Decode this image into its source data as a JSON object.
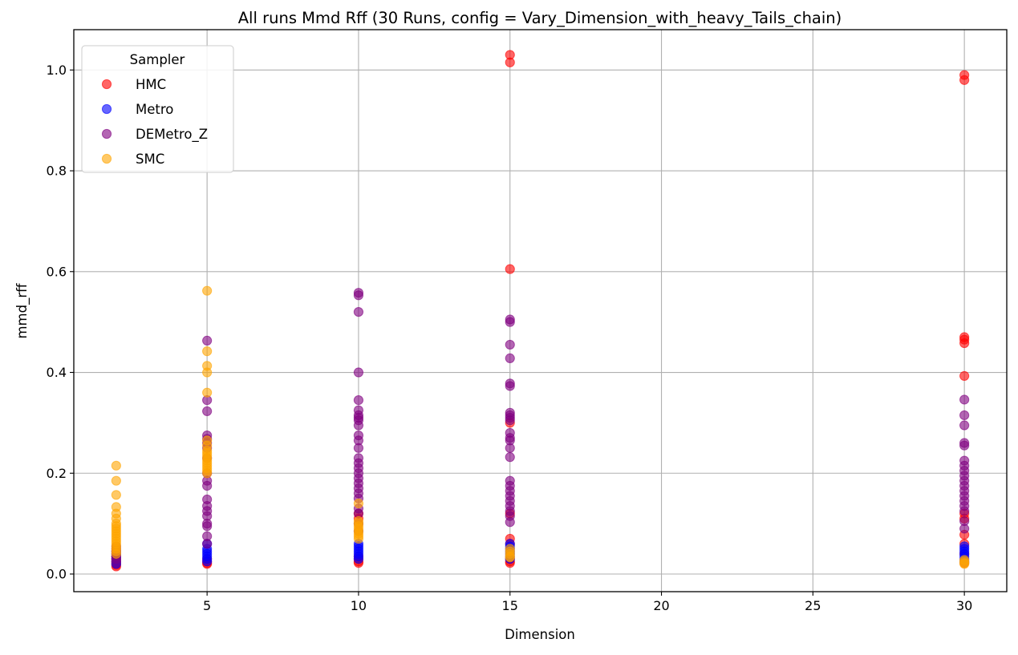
{
  "chart_data": {
    "type": "scatter",
    "title": "All runs Mmd Rff (30 Runs, config = Vary_Dimension_with_heavy_Tails_chain)",
    "xlabel": "Dimension",
    "ylabel": "mmd_rff",
    "xlim": [
      0.6,
      31.4
    ],
    "ylim": [
      -0.035,
      1.08
    ],
    "xticks": [
      5,
      10,
      15,
      20,
      25,
      30
    ],
    "yticks": [
      0.0,
      0.2,
      0.4,
      0.6,
      0.8,
      1.0
    ],
    "xtick_labels": [
      "5",
      "10",
      "15",
      "20",
      "25",
      "30"
    ],
    "ytick_labels": [
      "0.0",
      "0.2",
      "0.4",
      "0.6",
      "0.8",
      "1.0"
    ],
    "grid": true,
    "legend": {
      "title": "Sampler",
      "placement": "top-left"
    },
    "series": [
      {
        "name": "HMC",
        "color": "#ff0000",
        "points": [
          [
            2,
            0.015
          ],
          [
            2,
            0.018
          ],
          [
            2,
            0.02
          ],
          [
            2,
            0.022
          ],
          [
            2,
            0.025
          ],
          [
            2,
            0.03
          ],
          [
            2,
            0.035
          ],
          [
            5,
            0.02
          ],
          [
            5,
            0.022
          ],
          [
            5,
            0.025
          ],
          [
            5,
            0.03
          ],
          [
            10,
            0.022
          ],
          [
            10,
            0.025
          ],
          [
            10,
            0.03
          ],
          [
            10,
            0.035
          ],
          [
            10,
            0.11
          ],
          [
            10,
            0.12
          ],
          [
            15,
            1.03
          ],
          [
            15,
            1.015
          ],
          [
            15,
            0.605
          ],
          [
            15,
            0.3
          ],
          [
            15,
            0.12
          ],
          [
            15,
            0.07
          ],
          [
            15,
            0.06
          ],
          [
            15,
            0.03
          ],
          [
            15,
            0.025
          ],
          [
            15,
            0.022
          ],
          [
            30,
            0.99
          ],
          [
            30,
            0.98
          ],
          [
            30,
            0.47
          ],
          [
            30,
            0.465
          ],
          [
            30,
            0.458
          ],
          [
            30,
            0.393
          ],
          [
            30,
            0.12
          ],
          [
            30,
            0.11
          ],
          [
            30,
            0.078
          ],
          [
            30,
            0.06
          ],
          [
            30,
            0.04
          ],
          [
            30,
            0.022
          ]
        ]
      },
      {
        "name": "Metro",
        "color": "#0000ff",
        "points": [
          [
            2,
            0.02
          ],
          [
            2,
            0.025
          ],
          [
            2,
            0.03
          ],
          [
            2,
            0.035
          ],
          [
            2,
            0.04
          ],
          [
            2,
            0.045
          ],
          [
            5,
            0.025
          ],
          [
            5,
            0.03
          ],
          [
            5,
            0.035
          ],
          [
            5,
            0.04
          ],
          [
            5,
            0.045
          ],
          [
            5,
            0.05
          ],
          [
            5,
            0.06
          ],
          [
            10,
            0.03
          ],
          [
            10,
            0.035
          ],
          [
            10,
            0.04
          ],
          [
            10,
            0.045
          ],
          [
            10,
            0.05
          ],
          [
            10,
            0.055
          ],
          [
            10,
            0.06
          ],
          [
            15,
            0.03
          ],
          [
            15,
            0.035
          ],
          [
            15,
            0.04
          ],
          [
            15,
            0.045
          ],
          [
            15,
            0.05
          ],
          [
            15,
            0.055
          ],
          [
            15,
            0.06
          ],
          [
            30,
            0.025
          ],
          [
            30,
            0.03
          ],
          [
            30,
            0.035
          ],
          [
            30,
            0.04
          ],
          [
            30,
            0.045
          ],
          [
            30,
            0.05
          ],
          [
            30,
            0.055
          ]
        ]
      },
      {
        "name": "DEMetro_Z",
        "color": "#800080",
        "points": [
          [
            2,
            0.025
          ],
          [
            2,
            0.03
          ],
          [
            2,
            0.035
          ],
          [
            2,
            0.04
          ],
          [
            2,
            0.045
          ],
          [
            2,
            0.05
          ],
          [
            2,
            0.055
          ],
          [
            5,
            0.463
          ],
          [
            5,
            0.345
          ],
          [
            5,
            0.323
          ],
          [
            5,
            0.275
          ],
          [
            5,
            0.268
          ],
          [
            5,
            0.26
          ],
          [
            5,
            0.25
          ],
          [
            5,
            0.23
          ],
          [
            5,
            0.2
          ],
          [
            5,
            0.185
          ],
          [
            5,
            0.175
          ],
          [
            5,
            0.148
          ],
          [
            5,
            0.135
          ],
          [
            5,
            0.125
          ],
          [
            5,
            0.115
          ],
          [
            5,
            0.1
          ],
          [
            5,
            0.095
          ],
          [
            5,
            0.075
          ],
          [
            5,
            0.06
          ],
          [
            10,
            0.558
          ],
          [
            10,
            0.553
          ],
          [
            10,
            0.52
          ],
          [
            10,
            0.4
          ],
          [
            10,
            0.345
          ],
          [
            10,
            0.325
          ],
          [
            10,
            0.315
          ],
          [
            10,
            0.31
          ],
          [
            10,
            0.305
          ],
          [
            10,
            0.295
          ],
          [
            10,
            0.275
          ],
          [
            10,
            0.265
          ],
          [
            10,
            0.25
          ],
          [
            10,
            0.23
          ],
          [
            10,
            0.22
          ],
          [
            10,
            0.21
          ],
          [
            10,
            0.2
          ],
          [
            10,
            0.19
          ],
          [
            10,
            0.18
          ],
          [
            10,
            0.17
          ],
          [
            10,
            0.16
          ],
          [
            10,
            0.15
          ],
          [
            10,
            0.13
          ],
          [
            10,
            0.12
          ],
          [
            10,
            0.1
          ],
          [
            10,
            0.085
          ],
          [
            15,
            0.505
          ],
          [
            15,
            0.5
          ],
          [
            15,
            0.455
          ],
          [
            15,
            0.428
          ],
          [
            15,
            0.378
          ],
          [
            15,
            0.373
          ],
          [
            15,
            0.32
          ],
          [
            15,
            0.315
          ],
          [
            15,
            0.31
          ],
          [
            15,
            0.305
          ],
          [
            15,
            0.28
          ],
          [
            15,
            0.27
          ],
          [
            15,
            0.265
          ],
          [
            15,
            0.25
          ],
          [
            15,
            0.232
          ],
          [
            15,
            0.185
          ],
          [
            15,
            0.175
          ],
          [
            15,
            0.165
          ],
          [
            15,
            0.155
          ],
          [
            15,
            0.145
          ],
          [
            15,
            0.135
          ],
          [
            15,
            0.125
          ],
          [
            15,
            0.115
          ],
          [
            15,
            0.103
          ],
          [
            30,
            0.346
          ],
          [
            30,
            0.315
          ],
          [
            30,
            0.295
          ],
          [
            30,
            0.26
          ],
          [
            30,
            0.255
          ],
          [
            30,
            0.225
          ],
          [
            30,
            0.215
          ],
          [
            30,
            0.205
          ],
          [
            30,
            0.195
          ],
          [
            30,
            0.185
          ],
          [
            30,
            0.175
          ],
          [
            30,
            0.165
          ],
          [
            30,
            0.155
          ],
          [
            30,
            0.145
          ],
          [
            30,
            0.135
          ],
          [
            30,
            0.125
          ],
          [
            30,
            0.105
          ],
          [
            30,
            0.09
          ]
        ]
      },
      {
        "name": "SMC",
        "color": "#ffa500",
        "points": [
          [
            2,
            0.215
          ],
          [
            2,
            0.185
          ],
          [
            2,
            0.157
          ],
          [
            2,
            0.133
          ],
          [
            2,
            0.12
          ],
          [
            2,
            0.11
          ],
          [
            2,
            0.1
          ],
          [
            2,
            0.095
          ],
          [
            2,
            0.09
          ],
          [
            2,
            0.085
          ],
          [
            2,
            0.08
          ],
          [
            2,
            0.075
          ],
          [
            2,
            0.07
          ],
          [
            2,
            0.065
          ],
          [
            2,
            0.06
          ],
          [
            2,
            0.055
          ],
          [
            2,
            0.05
          ],
          [
            2,
            0.045
          ],
          [
            2,
            0.04
          ],
          [
            5,
            0.562
          ],
          [
            5,
            0.442
          ],
          [
            5,
            0.413
          ],
          [
            5,
            0.4
          ],
          [
            5,
            0.36
          ],
          [
            5,
            0.265
          ],
          [
            5,
            0.255
          ],
          [
            5,
            0.245
          ],
          [
            5,
            0.24
          ],
          [
            5,
            0.235
          ],
          [
            5,
            0.23
          ],
          [
            5,
            0.225
          ],
          [
            5,
            0.22
          ],
          [
            5,
            0.215
          ],
          [
            5,
            0.21
          ],
          [
            5,
            0.205
          ],
          [
            5,
            0.2
          ],
          [
            10,
            0.14
          ],
          [
            10,
            0.105
          ],
          [
            10,
            0.1
          ],
          [
            10,
            0.095
          ],
          [
            10,
            0.09
          ],
          [
            10,
            0.085
          ],
          [
            10,
            0.08
          ],
          [
            10,
            0.075
          ],
          [
            10,
            0.07
          ],
          [
            15,
            0.05
          ],
          [
            15,
            0.045
          ],
          [
            15,
            0.04
          ],
          [
            15,
            0.035
          ],
          [
            15,
            0.033
          ],
          [
            30,
            0.028
          ],
          [
            30,
            0.025
          ],
          [
            30,
            0.022
          ],
          [
            30,
            0.02
          ]
        ]
      }
    ]
  }
}
